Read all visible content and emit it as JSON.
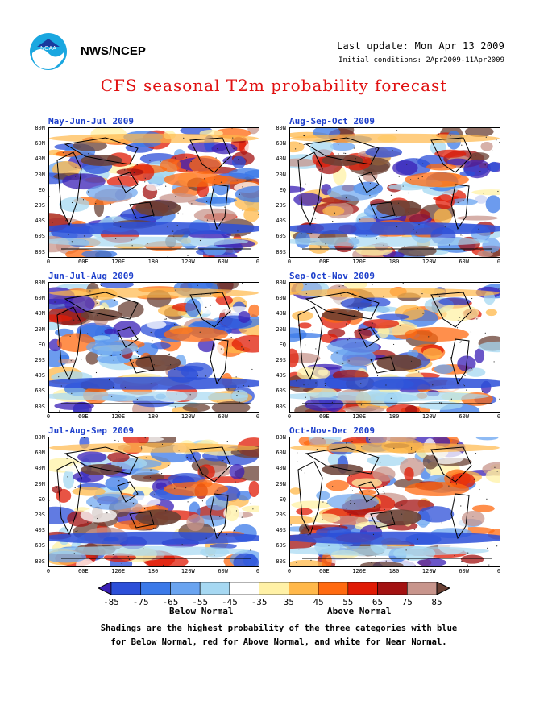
{
  "header": {
    "org": "NWS/NCEP",
    "last_update": "Last update: Mon Apr 13 2009",
    "initial_conditions": "Initial conditions: 2Apr2009-11Apr2009",
    "title": "CFS seasonal T2m probability forecast"
  },
  "panels": [
    {
      "title": "May-Jun-Jul 2009"
    },
    {
      "title": "Aug-Sep-Oct 2009"
    },
    {
      "title": "Jun-Jul-Aug 2009"
    },
    {
      "title": "Sep-Oct-Nov 2009"
    },
    {
      "title": "Jul-Aug-Sep 2009"
    },
    {
      "title": "Oct-Nov-Dec 2009"
    }
  ],
  "lat_ticks": [
    "80N",
    "60N",
    "40N",
    "20N",
    "EQ",
    "20S",
    "40S",
    "60S",
    "80S"
  ],
  "lon_ticks": [
    "0",
    "60E",
    "120E",
    "180",
    "120W",
    "60W",
    "0"
  ],
  "colorbar": {
    "labels": [
      "-85",
      "-75",
      "-65",
      "-55",
      "-45",
      "-35",
      "35",
      "45",
      "55",
      "65",
      "75",
      "85"
    ],
    "colors": [
      "#3a1fb5",
      "#2c4fd8",
      "#3b79e8",
      "#6aa4f0",
      "#a6d8f2",
      "#ffffff",
      "#fff1a6",
      "#ffb84a",
      "#ff6a10",
      "#e01b05",
      "#a31212",
      "#c8958c",
      "#6a4034"
    ],
    "below_label": "Below Normal",
    "above_label": "Above Normal"
  },
  "footnote_line1": "Shadings are the highest probability of the three categories with blue",
  "footnote_line2": "for Below Normal, red for Above Normal, and white for Near Normal."
}
